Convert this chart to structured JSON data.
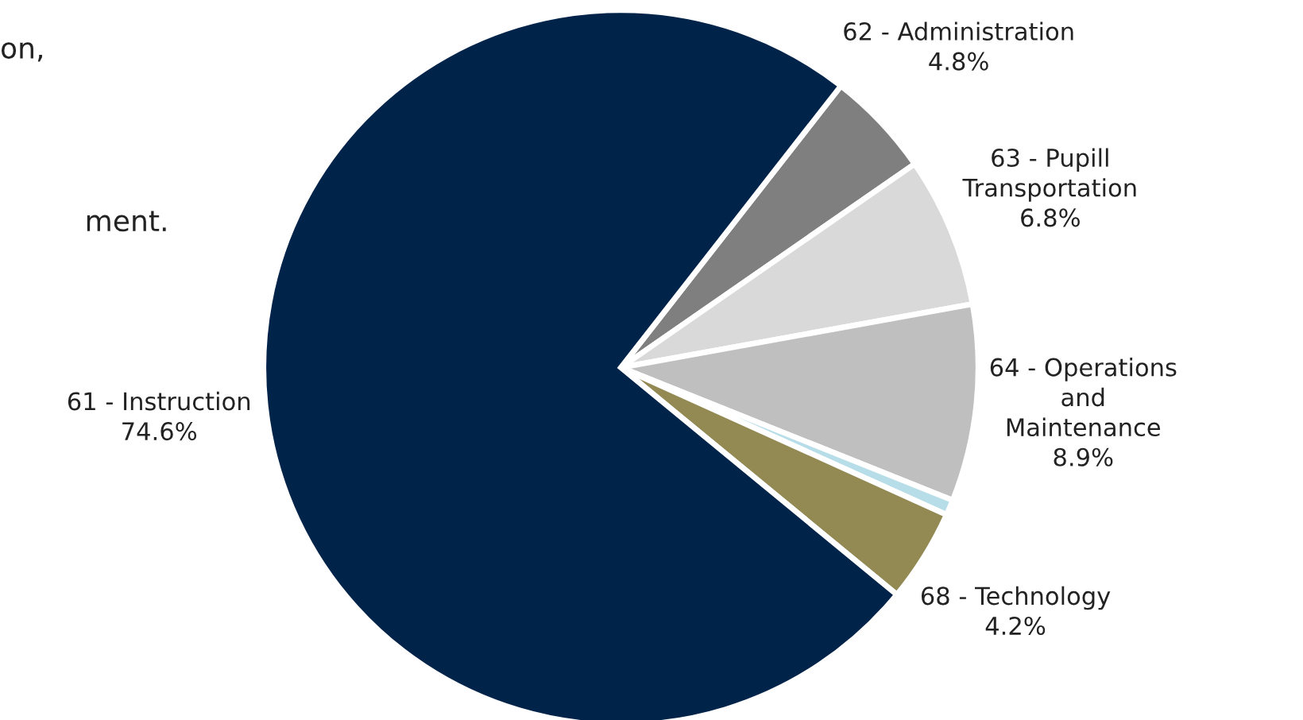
{
  "chart_data": {
    "type": "pie",
    "categories": [
      "62 - Administration",
      "63 - Pupill\nTransportation",
      "64 - Operations\nand\nMaintenance",
      null,
      "68 - Technology",
      "61 - Instruction"
    ],
    "values": [
      4.8,
      6.8,
      8.9,
      0.7,
      4.2,
      74.6
    ],
    "colors": [
      "#7f7f7f",
      "#d9d9d9",
      "#bfbfbf",
      "#b7dde8",
      "#938953",
      "#00234a"
    ],
    "value_labels": [
      "4.8%",
      "6.8%",
      "8.9%",
      null,
      "4.2%",
      "74.6%"
    ],
    "annotations": [
      "on,",
      "ment."
    ]
  }
}
